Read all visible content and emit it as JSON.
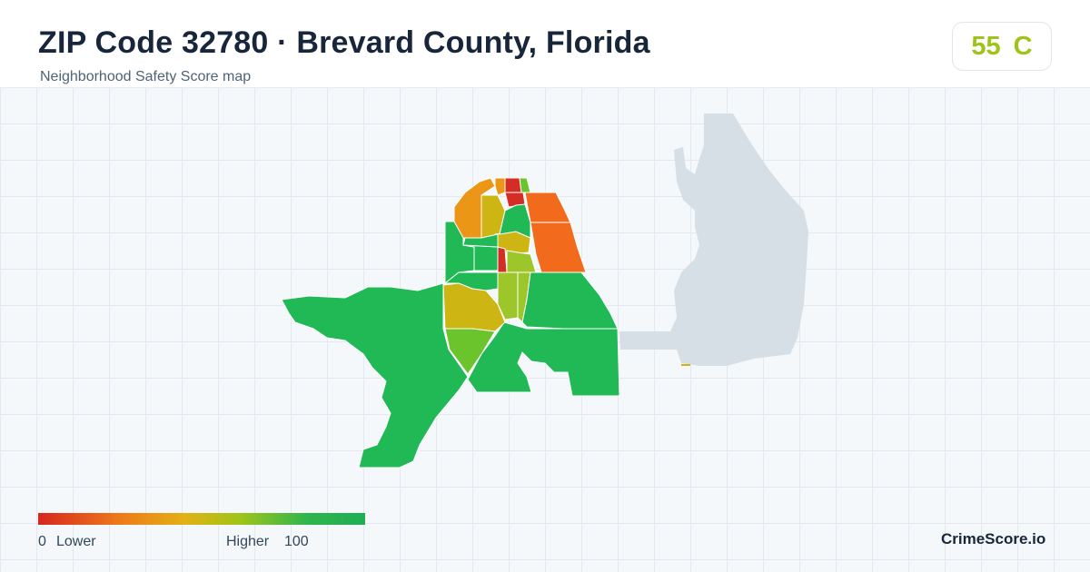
{
  "header": {
    "title": "ZIP Code 32780 · Brevard County, Florida",
    "subtitle": "Neighborhood Safety Score map"
  },
  "score": {
    "value": "55",
    "grade": "C",
    "color": "#9ec41a"
  },
  "legend": {
    "min": "0",
    "low_label": "Lower",
    "high_label": "Higher",
    "max": "100",
    "colors": [
      "#d7261e",
      "#ee7a1a",
      "#e2b114",
      "#9ec41a",
      "#2fb54c",
      "#1fae55"
    ]
  },
  "brand": "CrimeScore.io",
  "palette": {
    "very_low": "#d42d25",
    "low": "#f26a1b",
    "mid_low": "#ec9618",
    "mid": "#d4b516",
    "mid_high": "#9cc62a",
    "high": "#6cc42d",
    "very_high": "#21b856",
    "context_land": "#d6dee6"
  },
  "map_regions": [
    {
      "name": "region-north-1",
      "score_band": "very_low"
    },
    {
      "name": "region-north-2",
      "score_band": "very_low"
    },
    {
      "name": "region-northeast-1",
      "score_band": "low"
    },
    {
      "name": "region-northeast-2",
      "score_band": "low"
    },
    {
      "name": "region-northwest-1",
      "score_band": "mid_low"
    },
    {
      "name": "region-north-center-1",
      "score_band": "mid"
    },
    {
      "name": "region-north-center-2",
      "score_band": "mid"
    },
    {
      "name": "region-center-1",
      "score_band": "mid_high"
    },
    {
      "name": "region-center-red",
      "score_band": "very_low"
    },
    {
      "name": "region-center-2",
      "score_band": "mid_high"
    },
    {
      "name": "region-west-1",
      "score_band": "very_high"
    },
    {
      "name": "region-southwest-large",
      "score_band": "very_high"
    },
    {
      "name": "region-southeast-large",
      "score_band": "very_high"
    },
    {
      "name": "region-center-olive",
      "score_band": "mid"
    },
    {
      "name": "region-center-lime",
      "score_band": "high"
    },
    {
      "name": "region-east-green",
      "score_band": "very_high"
    }
  ]
}
